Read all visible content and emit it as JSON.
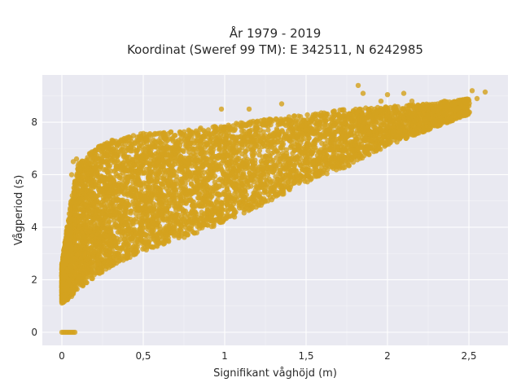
{
  "chart_data": {
    "type": "scatter",
    "title_line1": "År 1979 - 2019",
    "title_line2": "Koordinat (Sweref 99 TM): E 342511, N 6242985",
    "xlabel": "Signifikant våghöjd (m)",
    "ylabel": "Vågperiod (s)",
    "xlim": [
      -0.12,
      2.74
    ],
    "ylim": [
      -0.5,
      9.8
    ],
    "xticks": [
      0,
      0.5,
      1,
      1.5,
      2,
      2.5
    ],
    "xtick_labels": [
      "0",
      "0,5",
      "1",
      "1,5",
      "2",
      "2,5"
    ],
    "yticks": [
      0,
      2,
      4,
      6,
      8
    ],
    "ytick_labels": [
      "0",
      "2",
      "4",
      "6",
      "8"
    ],
    "grid": true,
    "background": "#e9e9f1",
    "marker_color": "#d4a21e",
    "series": [
      {
        "envelope": {
          "h": [
            0.0,
            0.05,
            0.1,
            0.2,
            0.3,
            0.5,
            0.75,
            1.0,
            1.25,
            1.5,
            1.75,
            2.0,
            2.25,
            2.5
          ],
          "t_lower": [
            1.1,
            1.3,
            1.6,
            2.1,
            2.5,
            3.1,
            3.6,
            4.2,
            4.9,
            5.7,
            6.3,
            7.1,
            7.7,
            8.3
          ],
          "t_upper": [
            2.6,
            4.8,
            6.4,
            7.0,
            7.3,
            7.6,
            7.7,
            7.9,
            8.1,
            8.3,
            8.5,
            8.6,
            8.7,
            8.9
          ]
        },
        "zero_period_points": [
          {
            "x": 0.0,
            "y": 0
          },
          {
            "x": 0.01,
            "y": 0
          },
          {
            "x": 0.02,
            "y": 0
          },
          {
            "x": 0.03,
            "y": 0
          },
          {
            "x": 0.04,
            "y": 0
          },
          {
            "x": 0.05,
            "y": 0
          },
          {
            "x": 0.06,
            "y": 0
          },
          {
            "x": 0.07,
            "y": 0
          },
          {
            "x": 0.08,
            "y": 0
          }
        ],
        "outliers": [
          {
            "x": 1.82,
            "y": 9.4
          },
          {
            "x": 1.85,
            "y": 9.1
          },
          {
            "x": 2.6,
            "y": 9.15
          },
          {
            "x": 2.52,
            "y": 9.2
          },
          {
            "x": 2.55,
            "y": 8.9
          },
          {
            "x": 2.1,
            "y": 9.1
          },
          {
            "x": 2.0,
            "y": 9.05
          },
          {
            "x": 1.96,
            "y": 8.8
          },
          {
            "x": 2.15,
            "y": 8.8
          },
          {
            "x": 2.35,
            "y": 8.8
          },
          {
            "x": 1.35,
            "y": 8.7
          },
          {
            "x": 0.98,
            "y": 8.5
          },
          {
            "x": 1.15,
            "y": 8.5
          },
          {
            "x": 0.07,
            "y": 6.5
          },
          {
            "x": 0.09,
            "y": 6.6
          },
          {
            "x": 0.06,
            "y": 6.0
          }
        ]
      }
    ]
  }
}
